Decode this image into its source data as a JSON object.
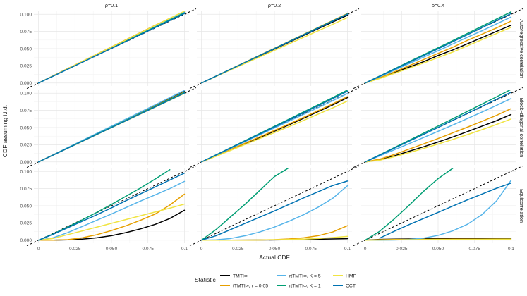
{
  "chart_data": {
    "type": "line",
    "col_strips": [
      "ρ=0.1",
      "ρ=0.2",
      "ρ=0.4"
    ],
    "row_strips": [
      "Autoregressive correlation",
      "Block−diagonal correlation",
      "Equicorrelation"
    ],
    "xlabel": "Actual CDF",
    "ylabel": "CDF assuming i.i.d.",
    "xlim": [
      0,
      0.1
    ],
    "ylim": [
      0,
      0.1
    ],
    "x_ticks": [
      "0",
      "0.025",
      "0.050",
      "0.075",
      "0.1"
    ],
    "y_ticks": [
      "0.000",
      "0.025",
      "0.050",
      "0.075",
      "0.100"
    ],
    "legend": {
      "title": "Statistic",
      "items": [
        {
          "label": "TMTI∞",
          "color": "#000000"
        },
        {
          "label": "tTMTI∞, τ = 0.05",
          "color": "#E69F00"
        },
        {
          "label": "rtTMTI∞, K = 5",
          "color": "#56B4E9"
        },
        {
          "label": "rtTMTI∞, K = 1",
          "color": "#009E73"
        },
        {
          "label": "HMP",
          "color": "#F0E442"
        },
        {
          "label": "CCT",
          "color": "#0072B2"
        }
      ]
    },
    "x": [
      0,
      0.01,
      0.02,
      0.03,
      0.04,
      0.05,
      0.06,
      0.07,
      0.08,
      0.09,
      0.1
    ],
    "panels": [
      {
        "row": 0,
        "col": 0,
        "series": [
          {
            "name": "TMTI∞",
            "values": [
              0,
              0.0105,
              0.021,
              0.031,
              0.0415,
              0.052,
              0.062,
              0.072,
              0.082,
              0.092,
              0.103
            ]
          },
          {
            "name": "tTMTI∞, τ = 0.05",
            "values": [
              0,
              0.0105,
              0.021,
              0.0315,
              0.042,
              0.0525,
              0.063,
              0.0735,
              0.084,
              0.094,
              0.104
            ]
          },
          {
            "name": "rtTMTI∞, K = 5",
            "values": [
              0,
              0.0103,
              0.0206,
              0.031,
              0.0413,
              0.0516,
              0.0619,
              0.0722,
              0.0825,
              0.0928,
              0.1032
            ]
          },
          {
            "name": "rtTMTI∞, K = 1",
            "values": [
              0,
              0.0101,
              0.0203,
              0.0305,
              0.0407,
              0.0509,
              0.0611,
              0.0713,
              0.0815,
              0.0917,
              0.102
            ]
          },
          {
            "name": "HMP",
            "values": [
              0,
              0.0104,
              0.0209,
              0.0314,
              0.0418,
              0.0522,
              0.0627,
              0.0732,
              0.0836,
              0.094,
              0.1045
            ]
          },
          {
            "name": "CCT",
            "values": [
              0,
              0.01,
              0.0201,
              0.0302,
              0.0403,
              0.0504,
              0.0605,
              0.0706,
              0.0807,
              0.0908,
              0.101
            ]
          }
        ]
      },
      {
        "row": 0,
        "col": 1,
        "series": [
          {
            "name": "TMTI∞",
            "values": [
              0,
              0.0098,
              0.0197,
              0.0296,
              0.0395,
              0.0494,
              0.0593,
              0.0692,
              0.079,
              0.0888,
              0.0985
            ]
          },
          {
            "name": "tTMTI∞, τ = 0.05",
            "values": [
              0,
              0.0101,
              0.0202,
              0.0303,
              0.0404,
              0.0505,
              0.0606,
              0.0707,
              0.0808,
              0.0909,
              0.101
            ]
          },
          {
            "name": "rtTMTI∞, K = 5",
            "values": [
              0,
              0.01,
              0.02,
              0.03,
              0.04,
              0.05,
              0.06,
              0.07,
              0.08,
              0.09,
              0.1
            ]
          },
          {
            "name": "rtTMTI∞, K = 1",
            "values": [
              0,
              0.01,
              0.0201,
              0.0301,
              0.0402,
              0.0502,
              0.0603,
              0.0703,
              0.0804,
              0.0904,
              0.1005
            ]
          },
          {
            "name": "HMP",
            "values": [
              0,
              0.0095,
              0.019,
              0.0285,
              0.038,
              0.0475,
              0.057,
              0.0665,
              0.076,
              0.0855,
              0.095
            ]
          },
          {
            "name": "CCT",
            "values": [
              0,
              0.01,
              0.02,
              0.03,
              0.0401,
              0.0501,
              0.0601,
              0.0701,
              0.0801,
              0.0901,
              0.1002
            ]
          }
        ]
      },
      {
        "row": 0,
        "col": 2,
        "series": [
          {
            "name": "TMTI∞",
            "values": [
              0,
              0.007,
              0.015,
              0.023,
              0.031,
              0.04,
              0.048,
              0.057,
              0.066,
              0.075,
              0.084
            ]
          },
          {
            "name": "tTMTI∞, τ = 0.05",
            "values": [
              0,
              0.0075,
              0.0162,
              0.025,
              0.034,
              0.043,
              0.052,
              0.062,
              0.071,
              0.08,
              0.09
            ]
          },
          {
            "name": "rtTMTI∞, K = 5",
            "values": [
              0,
              0.009,
              0.0185,
              0.028,
              0.0375,
              0.047,
              0.0568,
              0.0665,
              0.076,
              0.086,
              0.096
            ]
          },
          {
            "name": "rtTMTI∞, K = 1",
            "values": [
              0,
              0.0102,
              0.0205,
              0.0308,
              0.041,
              0.0513,
              0.0616,
              0.072,
              0.0825,
              0.093,
              0.1035
            ]
          },
          {
            "name": "HMP",
            "values": [
              0,
              0.0065,
              0.014,
              0.0215,
              0.029,
              0.037,
              0.045,
              0.054,
              0.063,
              0.072,
              0.081
            ]
          },
          {
            "name": "CCT",
            "values": [
              0,
              0.0098,
              0.0198,
              0.0298,
              0.0398,
              0.0498,
              0.06,
              0.0702,
              0.0805,
              0.0908,
              0.101
            ]
          }
        ]
      },
      {
        "row": 1,
        "col": 0,
        "series": [
          {
            "name": "TMTI∞",
            "values": [
              0,
              0.0102,
              0.0205,
              0.0307,
              0.041,
              0.0512,
              0.0615,
              0.0717,
              0.082,
              0.0922,
              0.1025
            ]
          },
          {
            "name": "tTMTI∞, τ = 0.05",
            "values": [
              0,
              0.0101,
              0.0203,
              0.0305,
              0.0406,
              0.0508,
              0.061,
              0.0711,
              0.0813,
              0.0915,
              0.1017
            ]
          },
          {
            "name": "rtTMTI∞, K = 5",
            "values": [
              0,
              0.0104,
              0.0208,
              0.0312,
              0.0416,
              0.052,
              0.0624,
              0.0728,
              0.0832,
              0.0936,
              0.104
            ]
          },
          {
            "name": "rtTMTI∞, K = 1",
            "values": [
              0,
              0.0101,
              0.0202,
              0.0303,
              0.0404,
              0.0505,
              0.0606,
              0.0707,
              0.0808,
              0.0909,
              0.101
            ]
          },
          {
            "name": "HMP",
            "values": [
              0,
              0.0099,
              0.0198,
              0.0298,
              0.0398,
              0.0498,
              0.0598,
              0.0698,
              0.0798,
              0.0898,
              0.0998
            ]
          },
          {
            "name": "CCT",
            "values": [
              0,
              0.01,
              0.02,
              0.03,
              0.04,
              0.05,
              0.06,
              0.0701,
              0.0801,
              0.0901,
              0.1002
            ]
          }
        ]
      },
      {
        "row": 1,
        "col": 1,
        "series": [
          {
            "name": "TMTI∞",
            "values": [
              0,
              0.0086,
              0.0175,
              0.0265,
              0.0355,
              0.0447,
              0.054,
              0.0635,
              0.0732,
              0.083,
              0.0935
            ]
          },
          {
            "name": "tTMTI∞, τ = 0.05",
            "values": [
              0,
              0.009,
              0.0182,
              0.0274,
              0.0366,
              0.0458,
              0.0552,
              0.0648,
              0.0745,
              0.0845,
              0.095
            ]
          },
          {
            "name": "rtTMTI∞, K = 5",
            "values": [
              0,
              0.0098,
              0.0197,
              0.0296,
              0.0395,
              0.0494,
              0.0593,
              0.0692,
              0.0792,
              0.0892,
              0.0995
            ]
          },
          {
            "name": "rtTMTI∞, K = 1",
            "values": [
              0,
              0.0103,
              0.0207,
              0.0311,
              0.0415,
              0.0519,
              0.0623,
              0.0727,
              0.0832,
              0.0937,
              0.1045
            ]
          },
          {
            "name": "HMP",
            "values": [
              0,
              0.0083,
              0.0168,
              0.0254,
              0.034,
              0.0427,
              0.0515,
              0.0604,
              0.0695,
              0.0787,
              0.0885
            ]
          },
          {
            "name": "CCT",
            "values": [
              0,
              0.0101,
              0.0203,
              0.0305,
              0.0407,
              0.0509,
              0.0612,
              0.0715,
              0.0818,
              0.0922,
              0.1028
            ]
          }
        ]
      },
      {
        "row": 1,
        "col": 2,
        "series": [
          {
            "name": "TMTI∞",
            "values": [
              0,
              0.003,
              0.0088,
              0.0155,
              0.022,
              0.029,
              0.0362,
              0.044,
              0.052,
              0.06,
              0.069
            ]
          },
          {
            "name": "tTMTI∞, τ = 0.05",
            "values": [
              0,
              0.004,
              0.0108,
              0.0185,
              0.0262,
              0.034,
              0.0422,
              0.0505,
              0.059,
              0.0678,
              0.0775
            ]
          },
          {
            "name": "rtTMTI∞, K = 5",
            "values": [
              0,
              0.0088,
              0.0176,
              0.0265,
              0.0355,
              0.0445,
              0.0537,
              0.063,
              0.0725,
              0.0822,
              0.0922
            ]
          },
          {
            "name": "rtTMTI∞, K = 1",
            "values": [
              0,
              0.0104,
              0.0208,
              0.0313,
              0.0418,
              0.0523,
              0.0628,
              0.0734,
              0.084,
              0.0946,
              0.1055
            ]
          },
          {
            "name": "HMP",
            "values": [
              0,
              0.0024,
              0.0076,
              0.0135,
              0.0196,
              0.026,
              0.0326,
              0.0396,
              0.0468,
              0.0545,
              0.0625
            ]
          },
          {
            "name": "CCT",
            "values": [
              0,
              0.0099,
              0.0199,
              0.03,
              0.0401,
              0.0502,
              0.0604,
              0.0706,
              0.0808,
              0.0911,
              0.1015
            ]
          }
        ]
      },
      {
        "row": 2,
        "col": 0,
        "series": [
          {
            "name": "TMTI∞",
            "values": [
              0,
              0,
              0.0005,
              0.0015,
              0.0035,
              0.0065,
              0.011,
              0.0165,
              0.023,
              0.0315,
              0.0435
            ]
          },
          {
            "name": "tTMTI∞, τ = 0.05",
            "values": [
              0,
              0,
              0.0008,
              0.0035,
              0.008,
              0.014,
              0.021,
              0.029,
              0.038,
              0.051,
              0.067
            ]
          },
          {
            "name": "rtTMTI∞, K = 5",
            "values": [
              0,
              0.0035,
              0.011,
              0.02,
              0.029,
              0.038,
              0.0475,
              0.057,
              0.066,
              0.075,
              0.0855
            ]
          },
          {
            "name": "rtTMTI∞, K = 1",
            "values": [
              0,
              0.009,
              0.019,
              0.0295,
              0.0405,
              0.052,
              0.064,
              0.076,
              0.089,
              0.1025,
              null
            ]
          },
          {
            "name": "HMP",
            "values": [
              0,
              0.0025,
              0.008,
              0.0135,
              0.019,
              0.0245,
              0.03,
              0.0355,
              0.041,
              0.0465,
              0.0525
            ]
          },
          {
            "name": "CCT",
            "values": [
              0,
              0.0085,
              0.018,
              0.0275,
              0.037,
              0.047,
              0.0575,
              0.0675,
              0.0775,
              0.0875,
              0.0975
            ]
          }
        ]
      },
      {
        "row": 2,
        "col": 1,
        "series": [
          {
            "name": "TMTI∞",
            "values": [
              0,
              0,
              0,
              0.0001,
              0.0002,
              0.0004,
              0.0007,
              0.001,
              0.0014,
              0.0018,
              0.0022
            ]
          },
          {
            "name": "tTMTI∞, τ = 0.05",
            "values": [
              0,
              0,
              0,
              0,
              0.0003,
              0.0008,
              0.0018,
              0.0035,
              0.0065,
              0.012,
              0.021
            ]
          },
          {
            "name": "rtTMTI∞, K = 5",
            "values": [
              0,
              0.0005,
              0.0025,
              0.0065,
              0.012,
              0.019,
              0.0275,
              0.037,
              0.048,
              0.061,
              0.079
            ]
          },
          {
            "name": "rtTMTI∞, K = 1",
            "values": [
              0,
              0.0155,
              0.034,
              0.0525,
              0.0725,
              0.0925,
              0.1055,
              null,
              null,
              null,
              null
            ]
          },
          {
            "name": "HMP",
            "values": [
              0,
              0,
              0,
              0.0001,
              0.0003,
              0.0006,
              0.001,
              0.0016,
              0.0025,
              0.0038,
              0.0055
            ]
          },
          {
            "name": "CCT",
            "values": [
              0,
              0.0065,
              0.0155,
              0.0245,
              0.0335,
              0.0425,
              0.052,
              0.0615,
              0.0705,
              0.0795,
              0.086
            ]
          }
        ]
      },
      {
        "row": 2,
        "col": 2,
        "series": [
          {
            "name": "TMTI∞",
            "values": [
              0,
              0.0012,
              0.0016,
              0.0018,
              0.002,
              0.0021,
              0.0022,
              0.0023,
              0.0024,
              0.0025,
              0.0026
            ]
          },
          {
            "name": "tTMTI∞, τ = 0.05",
            "values": [
              0,
              0.0007,
              0.001,
              0.0012,
              0.0013,
              0.0014,
              0.0015,
              0.0016,
              0.0016,
              0.0017,
              0.0017
            ]
          },
          {
            "name": "rtTMTI∞, K = 5",
            "values": [
              0,
              0,
              0.0002,
              0.001,
              0.003,
              0.007,
              0.0135,
              0.023,
              0.037,
              0.057,
              0.087
            ]
          },
          {
            "name": "rtTMTI∞, K = 1",
            "values": [
              0,
              0.013,
              0.031,
              0.0505,
              0.071,
              0.0895,
              0.1045,
              null,
              null,
              null,
              null
            ]
          },
          {
            "name": "HMP",
            "values": [
              0,
              0.0002,
              0.0005,
              0.0007,
              0.0009,
              0.001,
              0.0011,
              0.0012,
              0.0013,
              0.0014,
              0.0015
            ]
          },
          {
            "name": "CCT",
            "values": [
              null,
              0.003,
              0.013,
              0.0225,
              0.0315,
              0.0405,
              0.0495,
              0.0585,
              0.067,
              0.0755,
              0.083
            ]
          }
        ]
      }
    ]
  }
}
